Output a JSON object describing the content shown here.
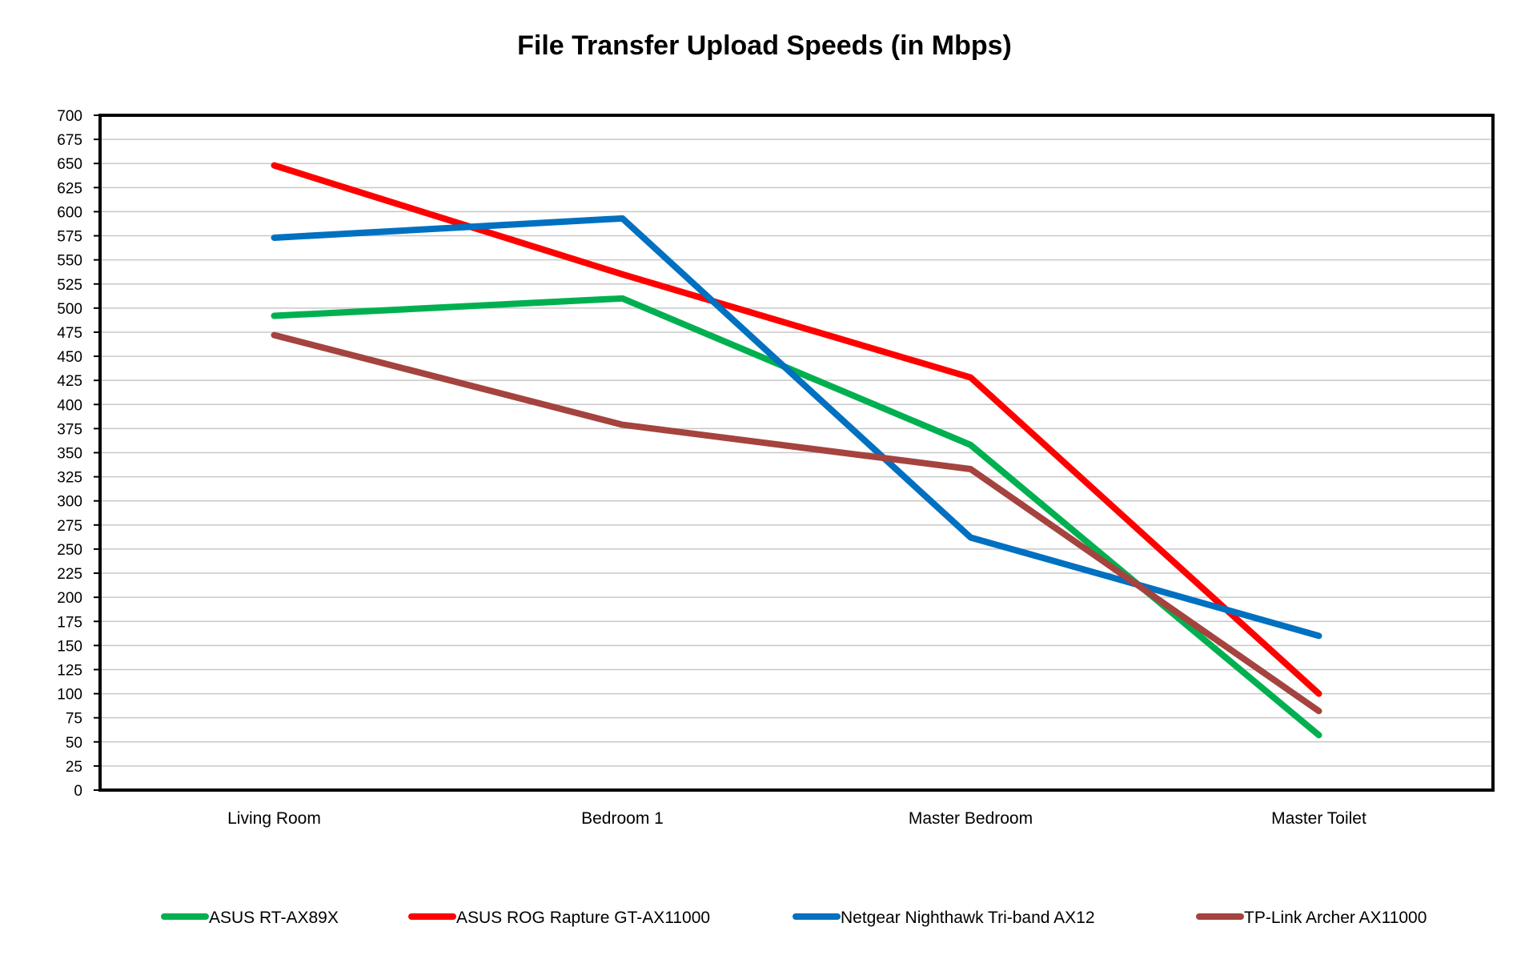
{
  "chart_data": {
    "type": "line",
    "title": "File Transfer Upload Speeds (in Mbps)",
    "xlabel": "",
    "ylabel": "",
    "categories": [
      "Living Room",
      "Bedroom 1",
      "Master Bedroom",
      "Master Toilet"
    ],
    "ylim": [
      0,
      700
    ],
    "yticks": [
      0,
      25,
      50,
      75,
      100,
      125,
      150,
      175,
      200,
      225,
      250,
      275,
      300,
      325,
      350,
      375,
      400,
      425,
      450,
      475,
      500,
      525,
      550,
      575,
      600,
      625,
      650,
      675,
      700
    ],
    "grid": true,
    "legend_position": "bottom",
    "series": [
      {
        "name": "ASUS RT-AX89X",
        "color": "#00b050",
        "values": [
          492,
          510,
          358,
          57
        ]
      },
      {
        "name": "ASUS ROG Rapture GT-AX11000",
        "color": "#ff0000",
        "values": [
          648,
          535,
          428,
          100
        ]
      },
      {
        "name": "Netgear Nighthawk Tri-band AX12",
        "color": "#0070c0",
        "values": [
          573,
          593,
          262,
          160
        ]
      },
      {
        "name": "TP-Link Archer AX11000",
        "color": "#a5433f",
        "values": [
          472,
          379,
          333,
          82
        ]
      }
    ]
  }
}
